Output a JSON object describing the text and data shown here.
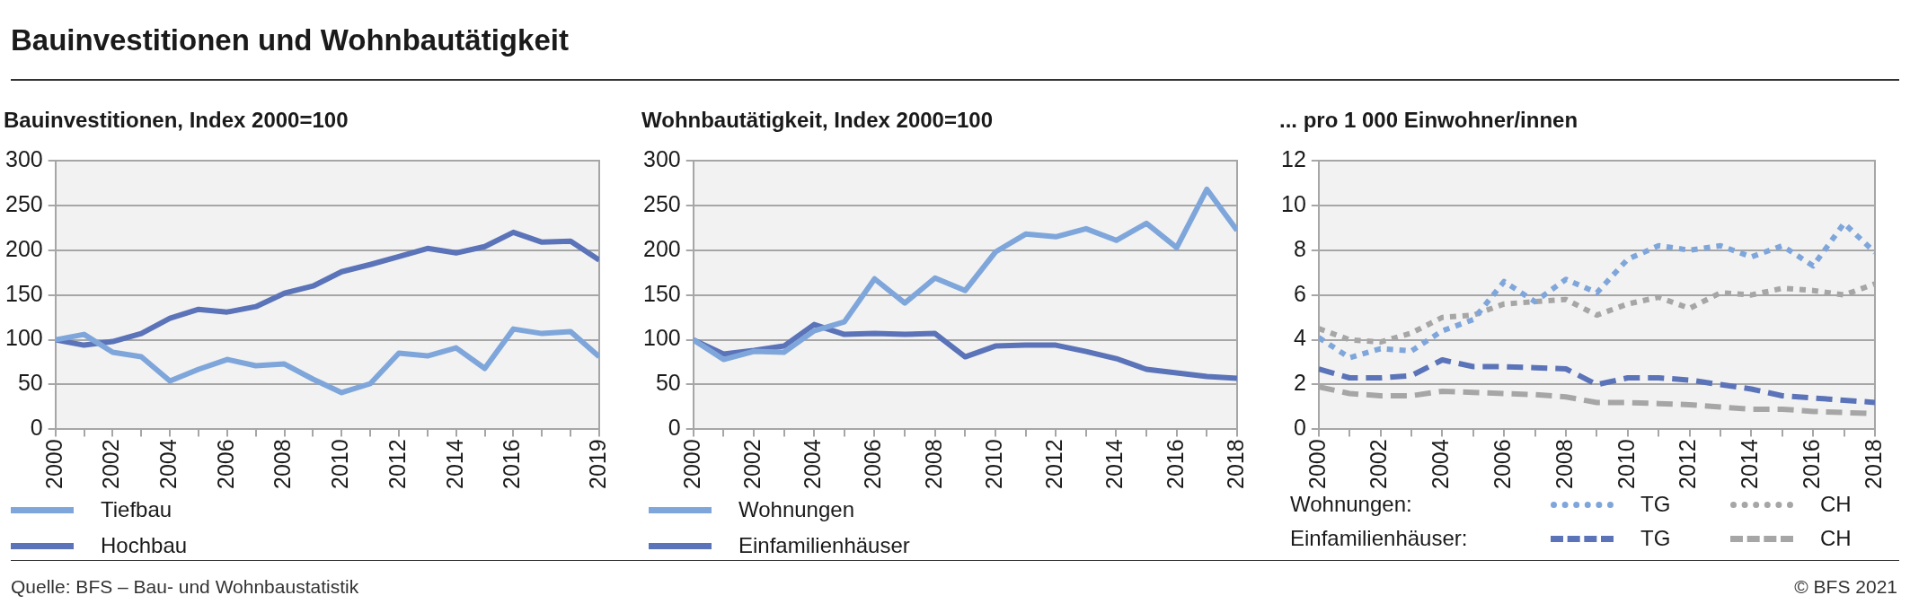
{
  "chart_data": [
    {
      "type": "line",
      "title": "Bauinvestitionen und Wohnbautätigkeit",
      "subtitle": "Bauinvestitionen, Index 2000=100",
      "x": [
        2000,
        2001,
        2002,
        2003,
        2004,
        2005,
        2006,
        2007,
        2008,
        2009,
        2010,
        2011,
        2012,
        2013,
        2014,
        2015,
        2016,
        2017,
        2018,
        2019
      ],
      "series": [
        {
          "name": "Tiefbau",
          "color": "#7fa6db",
          "values": [
            100,
            106,
            86,
            81,
            54,
            67,
            78,
            71,
            73,
            56,
            41,
            51,
            85,
            82,
            91,
            68,
            112,
            107,
            109,
            81
          ]
        },
        {
          "name": "Hochbau",
          "color": "#5b73b8",
          "values": [
            100,
            94,
            98,
            107,
            124,
            134,
            131,
            137,
            152,
            160,
            176,
            184,
            193,
            202,
            197,
            204,
            220,
            209,
            210,
            189
          ]
        }
      ],
      "xlim": [
        2000,
        2019
      ],
      "xticks": [
        2000,
        {
          "value": 2001,
          "label": null
        },
        2002,
        {
          "value": 2003,
          "label": null
        },
        2004,
        {
          "value": 2005,
          "label": null
        },
        2006,
        {
          "value": 2007,
          "label": null
        },
        2008,
        {
          "value": 2009,
          "label": null
        },
        2010,
        {
          "value": 2011,
          "label": null
        },
        2012,
        {
          "value": 2013,
          "label": null
        },
        2014,
        {
          "value": 2015,
          "label": null
        },
        2016,
        {
          "value": 2017,
          "label": null
        },
        {
          "value": 2018,
          "label": null
        },
        2019
      ],
      "ylim": [
        0,
        300
      ],
      "yticks": [
        0,
        50,
        100,
        150,
        200,
        250,
        300
      ],
      "grid": "y",
      "legend": "bottom",
      "marker": "none",
      "line_style": "solid"
    },
    {
      "type": "line",
      "title": "Wohnbautätigkeit, Index 2000=100",
      "x": [
        2000,
        2001,
        2002,
        2003,
        2004,
        2005,
        2006,
        2007,
        2008,
        2009,
        2010,
        2011,
        2012,
        2013,
        2014,
        2015,
        2016,
        2017,
        2018
      ],
      "series": [
        {
          "name": "Wohnungen",
          "color": "#7fa6db",
          "values": [
            100,
            78,
            87,
            86,
            110,
            120,
            168,
            141,
            169,
            155,
            198,
            218,
            215,
            224,
            211,
            230,
            203,
            268,
            222
          ]
        },
        {
          "name": "Einfamilienhäuser",
          "color": "#5b73b8",
          "values": [
            100,
            84,
            88,
            93,
            117,
            106,
            107,
            106,
            107,
            81,
            93,
            94,
            94,
            87,
            79,
            67,
            63,
            59,
            57
          ]
        }
      ],
      "xlim": [
        2000,
        2018
      ],
      "xticks": [
        2000,
        {
          "value": 2001,
          "label": null
        },
        2002,
        {
          "value": 2003,
          "label": null
        },
        2004,
        {
          "value": 2005,
          "label": null
        },
        2006,
        {
          "value": 2007,
          "label": null
        },
        2008,
        {
          "value": 2009,
          "label": null
        },
        2010,
        {
          "value": 2011,
          "label": null
        },
        2012,
        {
          "value": 2013,
          "label": null
        },
        2014,
        {
          "value": 2015,
          "label": null
        },
        2016,
        {
          "value": 2017,
          "label": null
        },
        2018
      ],
      "ylim": [
        0,
        300
      ],
      "yticks": [
        0,
        50,
        100,
        150,
        200,
        250,
        300
      ],
      "grid": "y",
      "legend": "bottom",
      "marker": "none",
      "line_style": "solid"
    },
    {
      "type": "line",
      "title": "... pro 1 000 Einwohner/innen",
      "x": [
        2000,
        2001,
        2002,
        2003,
        2004,
        2005,
        2006,
        2007,
        2008,
        2009,
        2010,
        2011,
        2012,
        2013,
        2014,
        2015,
        2016,
        2017,
        2018
      ],
      "series": [
        {
          "name": "TG",
          "color": "#7fa6db",
          "line_style": "dotted",
          "values": [
            4.1,
            3.2,
            3.6,
            3.5,
            4.4,
            4.9,
            6.6,
            5.7,
            6.7,
            6.1,
            7.6,
            8.2,
            8.0,
            8.2,
            7.7,
            8.2,
            7.3,
            9.2,
            7.9
          ]
        },
        {
          "name": "CH",
          "color": "#a6a6a6",
          "line_style": "dotted",
          "values": [
            4.5,
            4.0,
            3.9,
            4.3,
            5.0,
            5.1,
            5.6,
            5.7,
            5.8,
            5.1,
            5.6,
            5.9,
            5.4,
            6.1,
            6.0,
            6.3,
            6.2,
            6.0,
            6.5
          ]
        },
        {
          "name": "TG",
          "color": "#5b73b8",
          "line_style": "dashed",
          "values": [
            2.7,
            2.3,
            2.3,
            2.4,
            3.1,
            2.8,
            2.8,
            2.75,
            2.7,
            2.0,
            2.3,
            2.3,
            2.2,
            2.0,
            1.8,
            1.5,
            1.4,
            1.3,
            1.2
          ]
        },
        {
          "name": "CH",
          "color": "#a6a6a6",
          "line_style": "dashed",
          "values": [
            1.9,
            1.6,
            1.5,
            1.5,
            1.7,
            1.65,
            1.6,
            1.55,
            1.45,
            1.2,
            1.2,
            1.15,
            1.1,
            1.0,
            0.9,
            0.9,
            0.8,
            0.75,
            0.7
          ]
        }
      ],
      "xlim": [
        2000,
        2018
      ],
      "xticks": [
        2000,
        {
          "value": 2001,
          "label": null
        },
        2002,
        {
          "value": 2003,
          "label": null
        },
        2004,
        {
          "value": 2005,
          "label": null
        },
        2006,
        {
          "value": 2007,
          "label": null
        },
        2008,
        {
          "value": 2009,
          "label": null
        },
        2010,
        {
          "value": 2011,
          "label": null
        },
        2012,
        {
          "value": 2013,
          "label": null
        },
        2014,
        {
          "value": 2015,
          "label": null
        },
        2016,
        {
          "value": 2017,
          "label": null
        },
        2018
      ],
      "ylim": [
        0,
        12
      ],
      "yticks": [
        0,
        2,
        4,
        6,
        8,
        10,
        12
      ],
      "grid": "y",
      "legend": "bottom",
      "marker": "none",
      "annotations": [
        "Wohnungen:",
        "Einfamilienhäuser:",
        "Quelle: BFS – Bau- und Wohnbaustatistik",
        "© BFS 2021"
      ]
    }
  ]
}
